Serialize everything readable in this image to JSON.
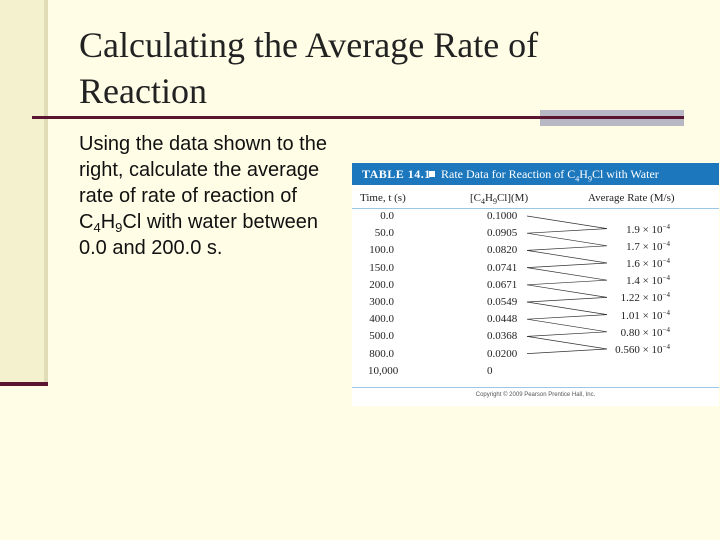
{
  "slide": {
    "title": "Calculating the Average Rate of Reaction",
    "body": {
      "part1": "Using the data shown to the right, calculate the average rate of rate of reaction of C",
      "sub1": "4",
      "part2": "H",
      "sub2": "9",
      "part3": "Cl with water between 0.0 and 200.0 s."
    }
  },
  "table": {
    "number": "TABLE 14.1",
    "caption": {
      "pre": "Rate Data for Reaction of C",
      "s1": "4",
      "mid": "H",
      "s2": "9",
      "post": "Cl with Water"
    },
    "headers": {
      "time": "Time, t (s)",
      "conc_pre": "[C",
      "conc_s1": "4",
      "conc_mid": "H",
      "conc_s2": "9",
      "conc_post": "Cl](M)",
      "rate": "Average Rate (M/s)"
    },
    "rows": [
      {
        "time": "0.0",
        "conc": "0.1000"
      },
      {
        "time": "50.0",
        "conc": "0.0905"
      },
      {
        "time": "100.0",
        "conc": "0.0820"
      },
      {
        "time": "150.0",
        "conc": "0.0741"
      },
      {
        "time": "200.0",
        "conc": "0.0671"
      },
      {
        "time": "300.0",
        "conc": "0.0549"
      },
      {
        "time": "400.0",
        "conc": "0.0448"
      },
      {
        "time": "500.0",
        "conc": "0.0368"
      },
      {
        "time": "800.0",
        "conc": "0.0200"
      },
      {
        "time": "10,000",
        "conc": "0"
      }
    ],
    "rates": [
      {
        "value": "1.9 × 10",
        "exp": "−4"
      },
      {
        "value": "1.7 × 10",
        "exp": "−4"
      },
      {
        "value": "1.6 × 10",
        "exp": "−4"
      },
      {
        "value": "1.4 × 10",
        "exp": "−4"
      },
      {
        "value": "1.22 × 10",
        "exp": "−4"
      },
      {
        "value": "1.01 × 10",
        "exp": "−4"
      },
      {
        "value": "0.80 × 10",
        "exp": "−4"
      },
      {
        "value": "0.560 × 10",
        "exp": "−4"
      }
    ],
    "copyright": "Copyright © 2009 Pearson Prentice Hall, Inc."
  },
  "colors": {
    "background": "#fffde6",
    "accent": "#5a1530",
    "table_header": "#1c77bd"
  }
}
